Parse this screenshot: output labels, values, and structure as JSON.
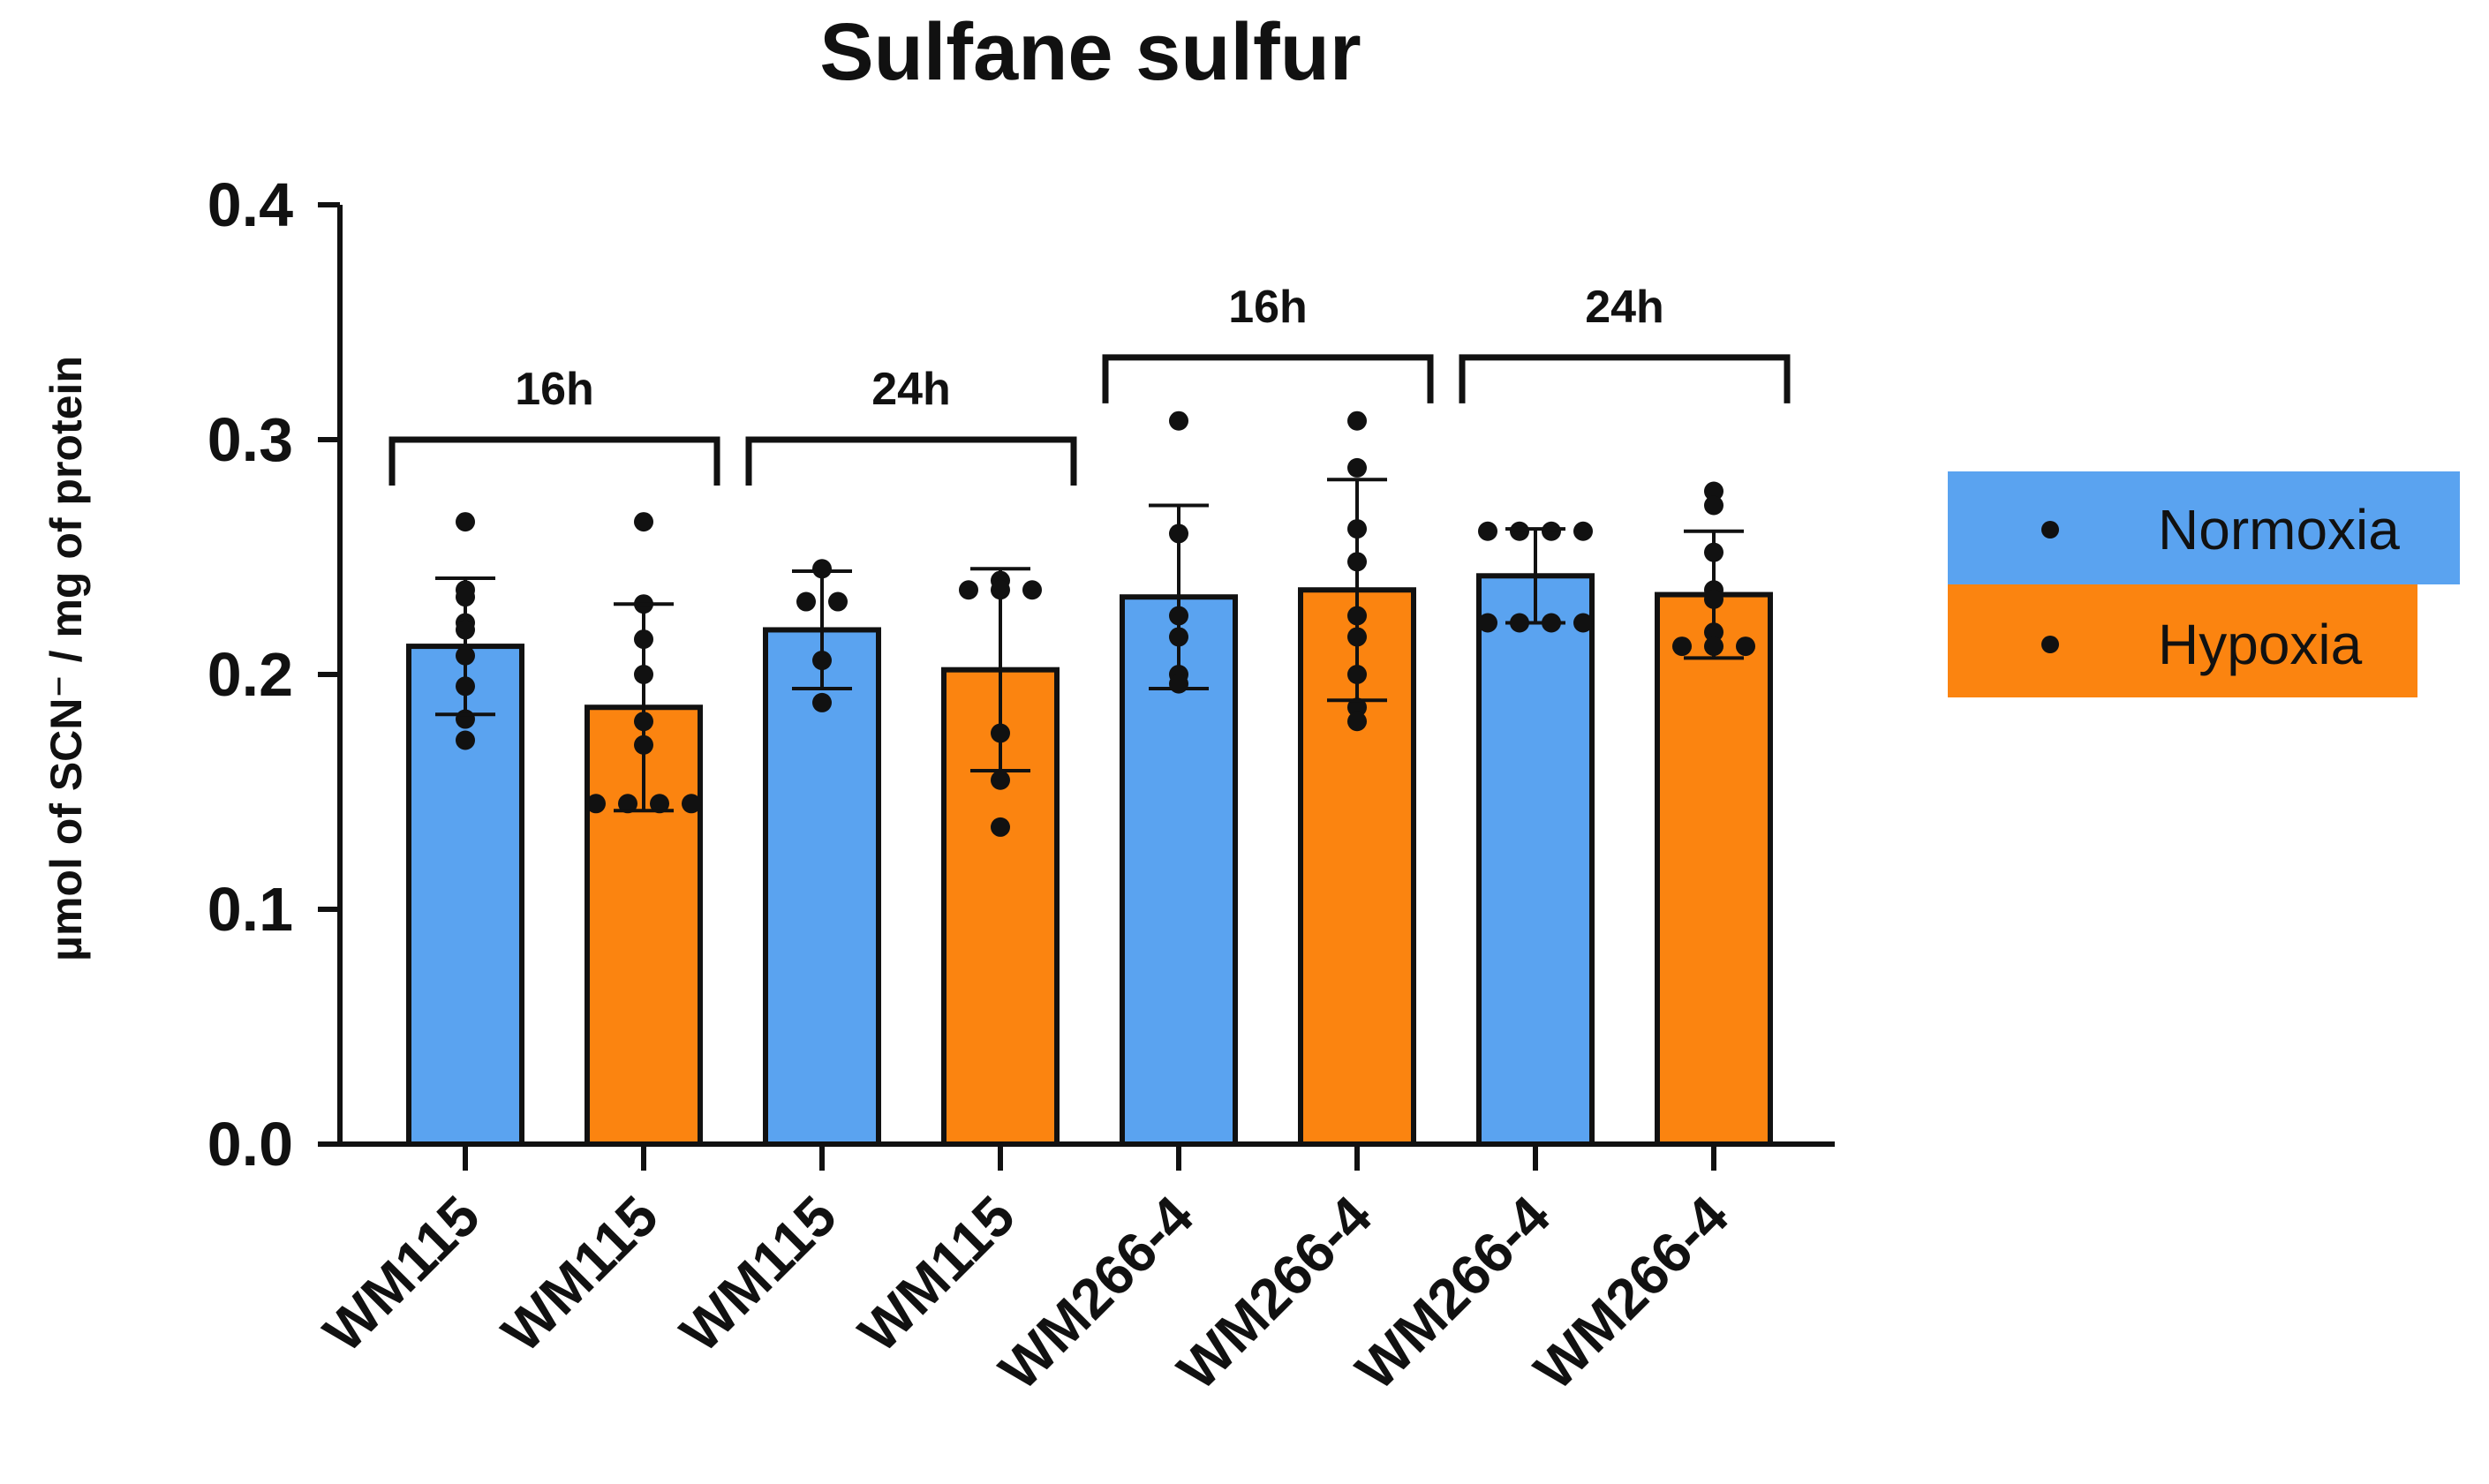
{
  "chart_data": {
    "type": "bar",
    "title": "Sulfane sulfur",
    "ylabel": "µmol of SCN⁻ / mg of protein",
    "xlabel": "",
    "ylim": [
      0.0,
      0.4
    ],
    "yticks": [
      "0.0",
      "0.1",
      "0.2",
      "0.3",
      "0.4"
    ],
    "categories": [
      "WM115",
      "WM115",
      "WM115",
      "WM115",
      "WM266-4",
      "WM266-4",
      "WM266-4",
      "WM266-4"
    ],
    "bars": [
      {
        "category": "WM115",
        "condition": "Normoxia",
        "time": "16h",
        "mean": 0.212,
        "sd": 0.029,
        "points": [
          0.265,
          0.236,
          0.233,
          0.222,
          0.219,
          0.208,
          0.195,
          0.181,
          0.172
        ]
      },
      {
        "category": "WM115",
        "condition": "Hypoxia",
        "time": "16h",
        "mean": 0.186,
        "sd": 0.044,
        "points": [
          0.265,
          0.23,
          0.215,
          0.2,
          0.18,
          0.17,
          0.145,
          0.145,
          0.145,
          0.145
        ]
      },
      {
        "category": "WM115",
        "condition": "Normoxia",
        "time": "24h",
        "mean": 0.219,
        "sd": 0.025,
        "points": [
          0.245,
          0.231,
          0.231,
          0.206,
          0.188
        ]
      },
      {
        "category": "WM115",
        "condition": "Hypoxia",
        "time": "24h",
        "mean": 0.202,
        "sd": 0.043,
        "points": [
          0.24,
          0.236,
          0.236,
          0.236,
          0.175,
          0.155,
          0.135
        ]
      },
      {
        "category": "WM266-4",
        "condition": "Normoxia",
        "time": "16h",
        "mean": 0.233,
        "sd": 0.039,
        "points": [
          0.308,
          0.26,
          0.225,
          0.216,
          0.2,
          0.196
        ]
      },
      {
        "category": "WM266-4",
        "condition": "Hypoxia",
        "time": "16h",
        "mean": 0.236,
        "sd": 0.047,
        "points": [
          0.308,
          0.288,
          0.262,
          0.248,
          0.225,
          0.216,
          0.2,
          0.186,
          0.18
        ]
      },
      {
        "category": "WM266-4",
        "condition": "Normoxia",
        "time": "24h",
        "mean": 0.242,
        "sd": 0.02,
        "points": [
          0.261,
          0.261,
          0.261,
          0.261,
          0.222,
          0.222,
          0.222,
          0.222
        ]
      },
      {
        "category": "WM266-4",
        "condition": "Hypoxia",
        "time": "24h",
        "mean": 0.234,
        "sd": 0.027,
        "points": [
          0.278,
          0.272,
          0.252,
          0.236,
          0.232,
          0.218,
          0.212,
          0.212,
          0.212
        ]
      }
    ],
    "brackets": [
      {
        "label": "16h",
        "from": 0,
        "to": 1,
        "level": 0.3
      },
      {
        "label": "24h",
        "from": 2,
        "to": 3,
        "level": 0.3
      },
      {
        "label": "16h",
        "from": 4,
        "to": 5,
        "level": 0.335
      },
      {
        "label": "24h",
        "from": 6,
        "to": 7,
        "level": 0.335
      }
    ],
    "legend": {
      "placement": "right",
      "items": [
        {
          "label": "Normoxia",
          "color": "#5aa3f0"
        },
        {
          "label": "Hypoxia",
          "color": "#fb8410"
        }
      ]
    },
    "colors": {
      "Normoxia": "#5aa3f0",
      "Hypoxia": "#fb8410"
    }
  }
}
